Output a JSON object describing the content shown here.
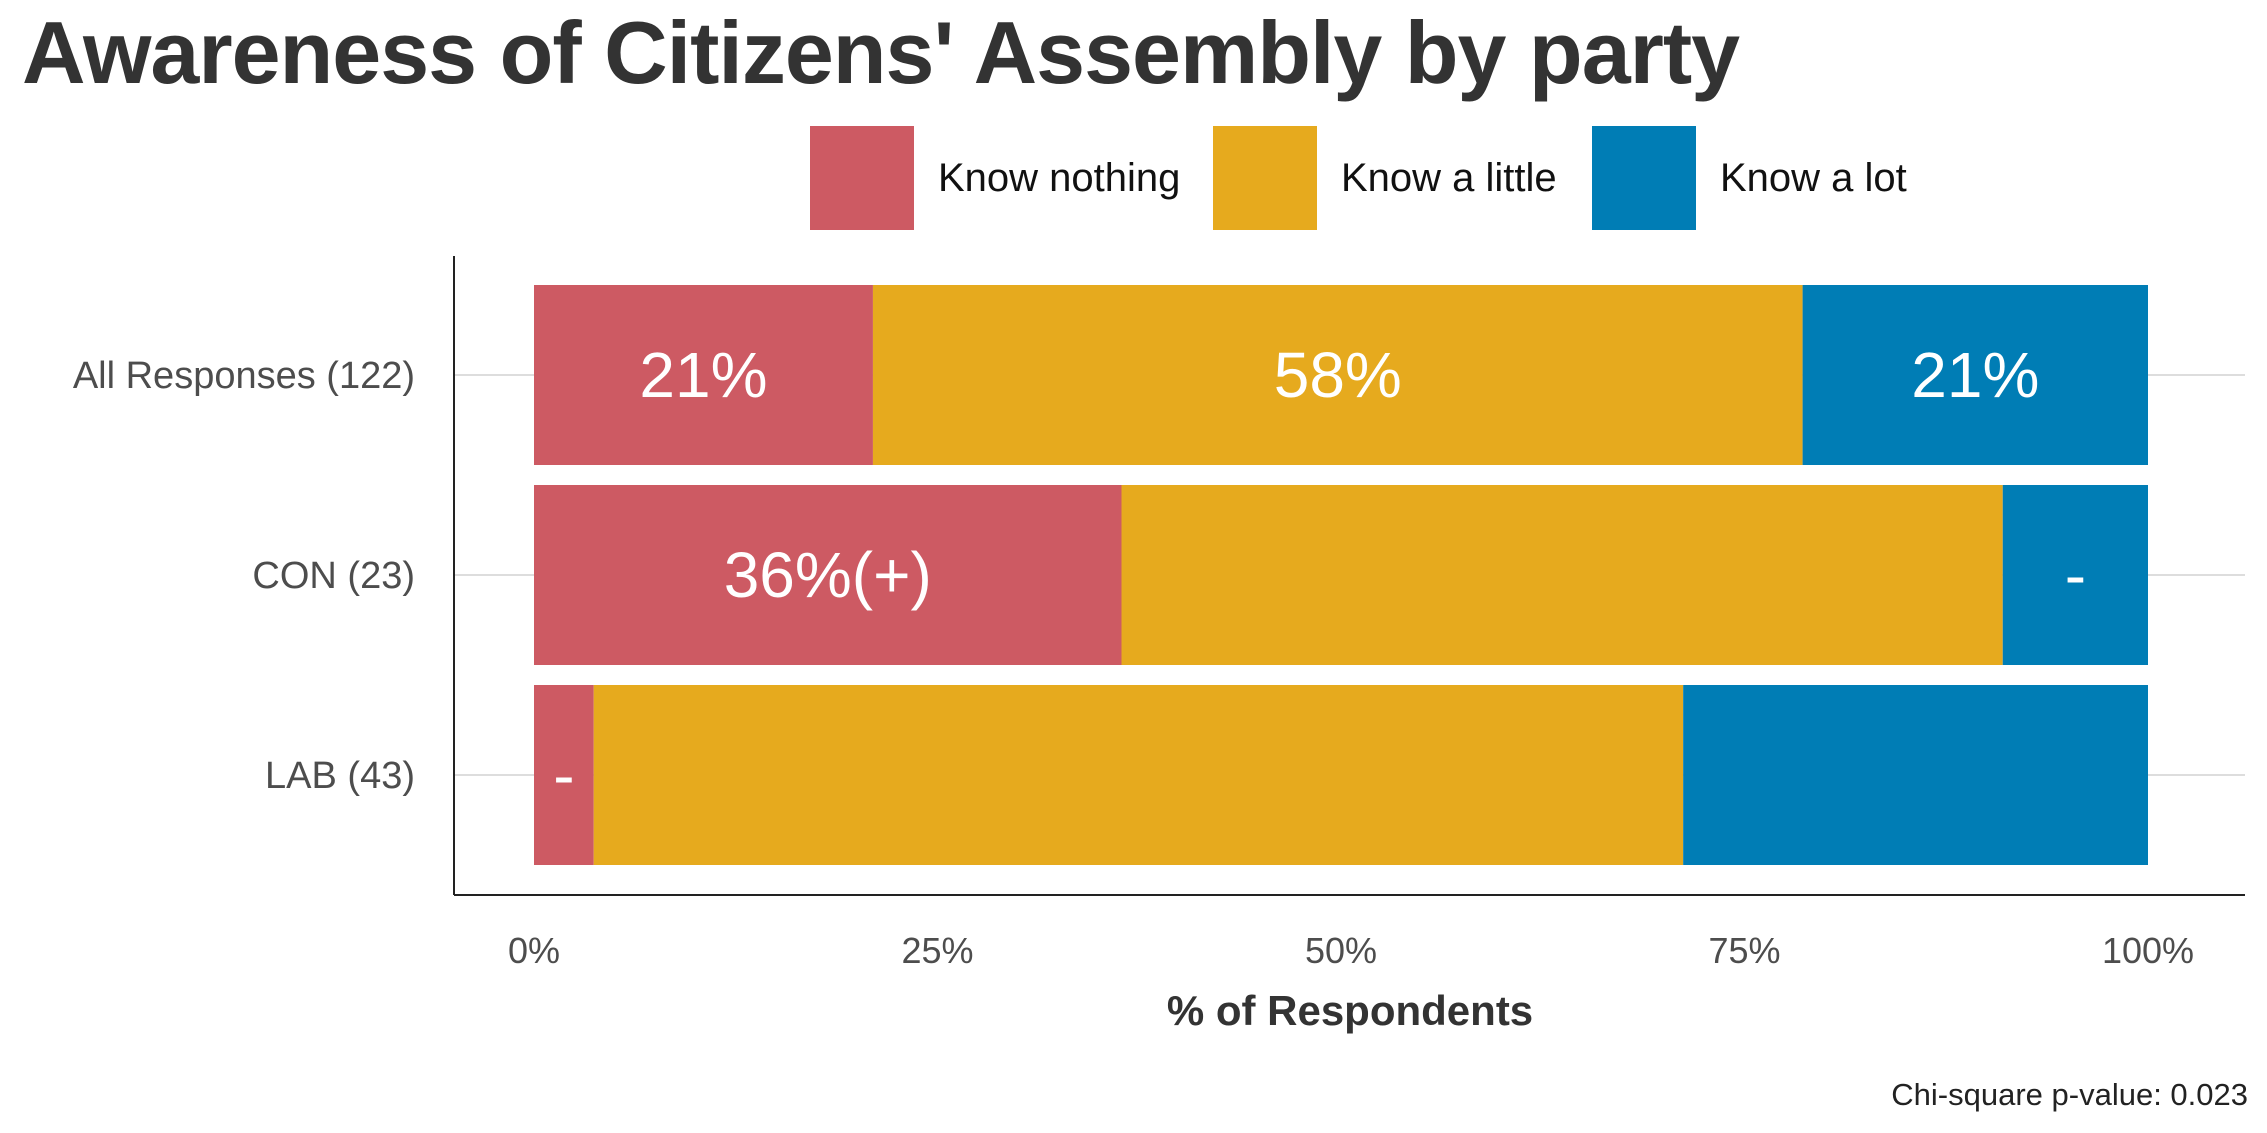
{
  "chart_data": {
    "type": "bar",
    "orientation": "horizontal",
    "stacked": true,
    "title": "Awareness of Citizens' Assembly by party",
    "xlabel": "% of Respondents",
    "ylabel": "",
    "xlim": [
      0,
      100
    ],
    "x_ticks": [
      "0%",
      "25%",
      "50%",
      "75%",
      "100%"
    ],
    "x_tick_values": [
      0,
      25,
      50,
      75,
      100
    ],
    "categories": [
      "All Responses (122)",
      "CON (23)",
      "LAB (43)"
    ],
    "series": [
      {
        "name": "Know nothing",
        "color": "#CD5A63",
        "values": [
          21,
          36.4,
          3.7
        ],
        "labels": [
          "21%",
          "36%(+)",
          "-"
        ]
      },
      {
        "name": "Know a little",
        "color": "#E6AA1E",
        "values": [
          57.6,
          54.6,
          67.5
        ],
        "labels": [
          "58%",
          "",
          ""
        ]
      },
      {
        "name": "Know a lot",
        "color": "#007DB5",
        "values": [
          21.4,
          9,
          28.8
        ],
        "labels": [
          "21%",
          "-",
          ""
        ]
      }
    ],
    "grid": true,
    "legend_position": "top",
    "footnote": "Chi-square p-value: 0.023"
  }
}
